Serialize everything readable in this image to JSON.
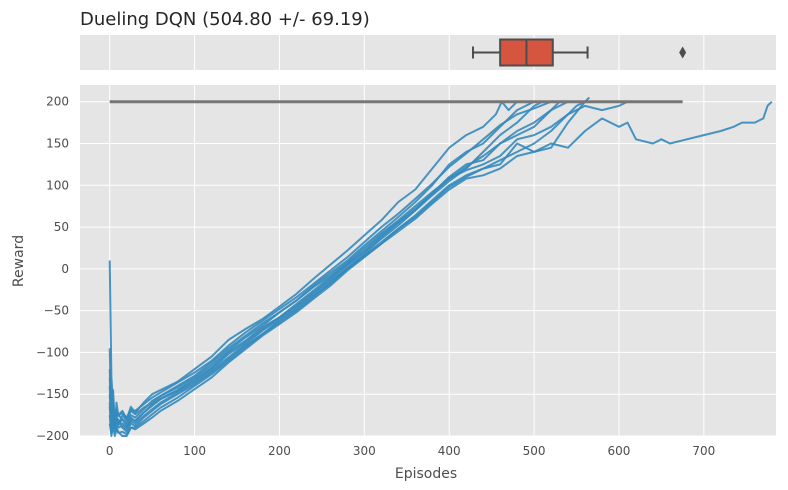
{
  "chart_data": {
    "type": "line",
    "title": "Dueling DQN (504.80 +/- 69.19)",
    "xlabel": "Episodes",
    "ylabel": "Reward",
    "xlim": [
      -35,
      785
    ],
    "ylim": [
      -200,
      220
    ],
    "xticks": [
      0,
      100,
      200,
      300,
      400,
      500,
      600,
      700
    ],
    "yticks": [
      -200,
      -150,
      -100,
      -50,
      0,
      50,
      100,
      150,
      200
    ],
    "grid": true,
    "legend": "none",
    "colors": {
      "line": "#348abd",
      "threshold": "#777777",
      "box": "#d5553f",
      "panel": "#e5e5e5",
      "grid": "#ffffff",
      "box_edge": "#4d4d4d"
    },
    "threshold_line": {
      "y": 200,
      "x_from": 0,
      "x_to": 675
    },
    "boxplot": {
      "whisker_low": 428,
      "q1": 460,
      "median": 491,
      "q3": 522,
      "whisker_high": 563,
      "outliers": [
        675
      ]
    },
    "series": [
      {
        "x": [
          0,
          2,
          4,
          6,
          8,
          10,
          15,
          20,
          25,
          30,
          40,
          50,
          60,
          80,
          100,
          120,
          140,
          160,
          180,
          200,
          220,
          240,
          260,
          280,
          300,
          320,
          340,
          360,
          380,
          400,
          420,
          440,
          455,
          462,
          470,
          480
        ],
        "y": [
          -95,
          -180,
          -145,
          -190,
          -160,
          -175,
          -170,
          -180,
          -165,
          -172,
          -160,
          -150,
          -145,
          -135,
          -120,
          -105,
          -85,
          -72,
          -60,
          -45,
          -30,
          -12,
          5,
          22,
          40,
          58,
          80,
          95,
          120,
          145,
          160,
          170,
          185,
          200,
          190,
          200
        ]
      },
      {
        "x": [
          0,
          2,
          4,
          6,
          8,
          10,
          15,
          20,
          25,
          30,
          40,
          50,
          60,
          80,
          100,
          120,
          140,
          160,
          180,
          200,
          220,
          240,
          260,
          280,
          300,
          320,
          340,
          360,
          380,
          400,
          420,
          440,
          460,
          480,
          490,
          500
        ],
        "y": [
          -120,
          -175,
          -160,
          -185,
          -170,
          -175,
          -180,
          -185,
          -175,
          -178,
          -168,
          -158,
          -152,
          -140,
          -128,
          -112,
          -95,
          -80,
          -65,
          -52,
          -38,
          -20,
          -5,
          10,
          28,
          45,
          62,
          80,
          100,
          125,
          140,
          150,
          170,
          190,
          195,
          200
        ]
      },
      {
        "x": [
          0,
          2,
          4,
          6,
          8,
          10,
          15,
          20,
          25,
          30,
          40,
          50,
          60,
          80,
          100,
          120,
          140,
          160,
          180,
          200,
          220,
          240,
          260,
          280,
          300,
          320,
          340,
          360,
          380,
          400,
          420,
          440,
          460,
          480,
          500,
          520,
          530
        ],
        "y": [
          -140,
          -190,
          -170,
          -195,
          -180,
          -185,
          -185,
          -190,
          -180,
          -182,
          -172,
          -162,
          -155,
          -145,
          -132,
          -118,
          -100,
          -86,
          -70,
          -58,
          -44,
          -28,
          -12,
          5,
          20,
          38,
          55,
          70,
          90,
          110,
          125,
          130,
          150,
          160,
          170,
          190,
          200
        ]
      },
      {
        "x": [
          0,
          2,
          4,
          6,
          8,
          10,
          15,
          20,
          25,
          30,
          40,
          50,
          60,
          80,
          100,
          120,
          140,
          160,
          180,
          200,
          220,
          240,
          260,
          280,
          300,
          320,
          340,
          360,
          380,
          400,
          420,
          440,
          460,
          480,
          500,
          520,
          540,
          560,
          565
        ],
        "y": [
          -160,
          -195,
          -175,
          -190,
          -185,
          -180,
          -190,
          -195,
          -185,
          -188,
          -178,
          -170,
          -162,
          -150,
          -138,
          -124,
          -108,
          -92,
          -78,
          -62,
          -48,
          -32,
          -18,
          0,
          15,
          30,
          48,
          62,
          80,
          98,
          110,
          120,
          125,
          150,
          140,
          145,
          175,
          200,
          205
        ]
      },
      {
        "x": [
          0,
          2,
          4,
          6,
          8,
          10,
          15,
          20,
          25,
          30,
          40,
          50,
          60,
          80,
          100,
          120,
          140,
          160,
          180,
          200,
          220,
          240,
          260,
          280,
          300,
          320,
          340,
          360,
          380,
          400,
          420,
          440,
          460,
          480,
          500,
          520,
          540,
          560,
          580,
          600,
          610,
          620,
          640,
          650,
          660,
          680,
          700,
          720,
          735,
          745,
          760,
          770,
          775,
          780
        ],
        "y": [
          -175,
          -200,
          -185,
          -195,
          -190,
          -195,
          -200,
          -200,
          -190,
          -192,
          -185,
          -178,
          -170,
          -158,
          -144,
          -130,
          -112,
          -96,
          -80,
          -66,
          -52,
          -36,
          -20,
          -2,
          14,
          30,
          45,
          60,
          78,
          95,
          108,
          112,
          120,
          135,
          140,
          150,
          145,
          165,
          180,
          170,
          175,
          155,
          150,
          155,
          150,
          155,
          160,
          165,
          170,
          175,
          175,
          180,
          195,
          200
        ]
      },
      {
        "x": [
          0,
          2,
          4,
          6,
          8,
          10,
          15,
          20,
          25,
          30,
          40,
          50,
          60,
          80,
          100,
          120,
          140,
          160,
          180,
          200,
          220,
          240,
          260,
          280,
          300,
          320,
          340,
          360,
          380,
          400,
          420,
          440,
          460,
          480,
          500,
          520,
          540,
          560,
          580,
          600,
          610,
          620
        ],
        "y": [
          10,
          -130,
          -160,
          -185,
          -175,
          -188,
          -175,
          -182,
          -170,
          -174,
          -166,
          -160,
          -152,
          -142,
          -130,
          -115,
          -98,
          -82,
          -68,
          -52,
          -38,
          -22,
          -8,
          8,
          25,
          42,
          58,
          75,
          92,
          108,
          118,
          125,
          135,
          155,
          160,
          170,
          185,
          195,
          190,
          195,
          200,
          200
        ]
      },
      {
        "x": [
          0,
          2,
          4,
          6,
          8,
          10,
          15,
          20,
          25,
          30,
          40,
          50,
          60,
          80,
          100,
          120,
          140,
          160,
          180,
          200,
          220,
          240,
          260,
          280,
          300,
          320,
          340,
          360,
          380,
          400,
          420,
          440,
          460,
          480,
          500,
          520,
          540
        ],
        "y": [
          -150,
          -185,
          -170,
          -190,
          -180,
          -186,
          -180,
          -188,
          -178,
          -182,
          -172,
          -164,
          -156,
          -146,
          -134,
          -120,
          -102,
          -88,
          -72,
          -58,
          -42,
          -26,
          -10,
          6,
          22,
          40,
          56,
          72,
          90,
          108,
          122,
          135,
          150,
          165,
          175,
          190,
          200
        ]
      },
      {
        "x": [
          0,
          2,
          4,
          6,
          8,
          10,
          15,
          20,
          25,
          30,
          40,
          50,
          60,
          80,
          100,
          120,
          140,
          160,
          180,
          200,
          220,
          240,
          260,
          280,
          300,
          320,
          340,
          360,
          380,
          400,
          420,
          440,
          460,
          480,
          490,
          500,
          510
        ],
        "y": [
          -165,
          -192,
          -180,
          -196,
          -188,
          -190,
          -188,
          -192,
          -182,
          -185,
          -176,
          -168,
          -160,
          -148,
          -136,
          -122,
          -106,
          -90,
          -74,
          -60,
          -46,
          -30,
          -14,
          2,
          18,
          36,
          52,
          70,
          88,
          105,
          120,
          140,
          160,
          175,
          185,
          195,
          200
        ]
      },
      {
        "x": [
          0,
          2,
          4,
          6,
          8,
          10,
          15,
          20,
          25,
          30,
          40,
          50,
          60,
          80,
          100,
          120,
          140,
          160,
          180,
          200,
          220,
          240,
          260,
          280,
          300,
          320,
          340,
          360,
          380,
          400,
          420,
          440,
          460,
          480,
          500,
          520,
          540,
          550,
          560
        ],
        "y": [
          -185,
          -198,
          -188,
          -200,
          -192,
          -196,
          -195,
          -198,
          -190,
          -190,
          -182,
          -174,
          -166,
          -154,
          -140,
          -126,
          -110,
          -94,
          -78,
          -64,
          -50,
          -34,
          -16,
          0,
          16,
          32,
          48,
          64,
          82,
          100,
          112,
          120,
          130,
          140,
          150,
          165,
          185,
          195,
          200
        ]
      },
      {
        "x": [
          0,
          2,
          4,
          6,
          8,
          10,
          15,
          20,
          25,
          30,
          40,
          50,
          60,
          80,
          100,
          120,
          140,
          160,
          180,
          200,
          220,
          240,
          260,
          280,
          300,
          320,
          340,
          360,
          380,
          400,
          420,
          440,
          460,
          480,
          500,
          510,
          520
        ],
        "y": [
          -130,
          -170,
          -155,
          -182,
          -168,
          -176,
          -172,
          -178,
          -168,
          -170,
          -162,
          -154,
          -148,
          -136,
          -124,
          -110,
          -92,
          -76,
          -62,
          -48,
          -34,
          -18,
          -2,
          14,
          32,
          50,
          66,
          84,
          102,
          122,
          138,
          155,
          172,
          185,
          192,
          196,
          200
        ]
      }
    ]
  }
}
